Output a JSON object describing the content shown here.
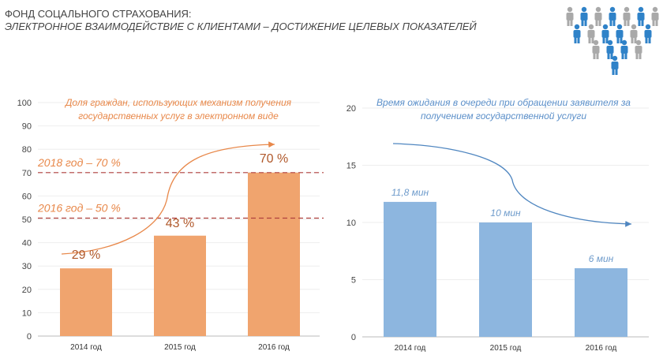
{
  "header": {
    "title": "ФОНД СОЦАЛЬНОГО СТРАХОВАНИЯ:",
    "subtitle": "ЭЛЕКТРОННОЕ ВЗАИМОДЕЙСТВИЕ С КЛИЕНТАМИ – ДОСТИЖЕНИЕ ЦЕЛЕВЫХ ПОКАЗАТЕЛЕЙ",
    "logo_icon": "people-crowd-icon"
  },
  "chart_data": [
    {
      "type": "bar",
      "title": "Доля граждан, использующих механизм получения государственных услуг в электронном виде",
      "title_lines": [
        "Доля граждан, использующих механизм получения",
        "государственных услуг в электронном виде"
      ],
      "categories": [
        "2014 год",
        "2015 год",
        "2016 год"
      ],
      "values": [
        29,
        43,
        70
      ],
      "data_labels": [
        "29 %",
        "43 %",
        "70 %"
      ],
      "ylim": [
        0,
        100
      ],
      "yticks": [
        0,
        10,
        20,
        30,
        40,
        50,
        60,
        70,
        80,
        90,
        100
      ],
      "grid": true,
      "color": "#F0A46E",
      "title_color": "#E8884A",
      "reference_lines": [
        {
          "value": 70,
          "label": "2018 год – 70 %"
        },
        {
          "value": 50.5,
          "label": "2016 год – 50 %"
        }
      ],
      "trend_arrow": "up"
    },
    {
      "type": "bar",
      "title": "Время ожидания в очереди при обращении заявителя за получением государственной услуги",
      "title_lines": [
        "Время ожидания в очереди при обращении заявителя за",
        "получением государственной услуги"
      ],
      "categories": [
        "2014 год",
        "2015 год",
        "2016 год"
      ],
      "values": [
        11.8,
        10,
        6
      ],
      "data_labels": [
        "11,8 мин",
        "10 мин",
        "6 мин"
      ],
      "ylim": [
        0,
        20
      ],
      "yticks": [
        0,
        5,
        10,
        15,
        20
      ],
      "grid": true,
      "color": "#8DB6DF",
      "title_color": "#5B8FC9",
      "trend_arrow": "down"
    }
  ]
}
